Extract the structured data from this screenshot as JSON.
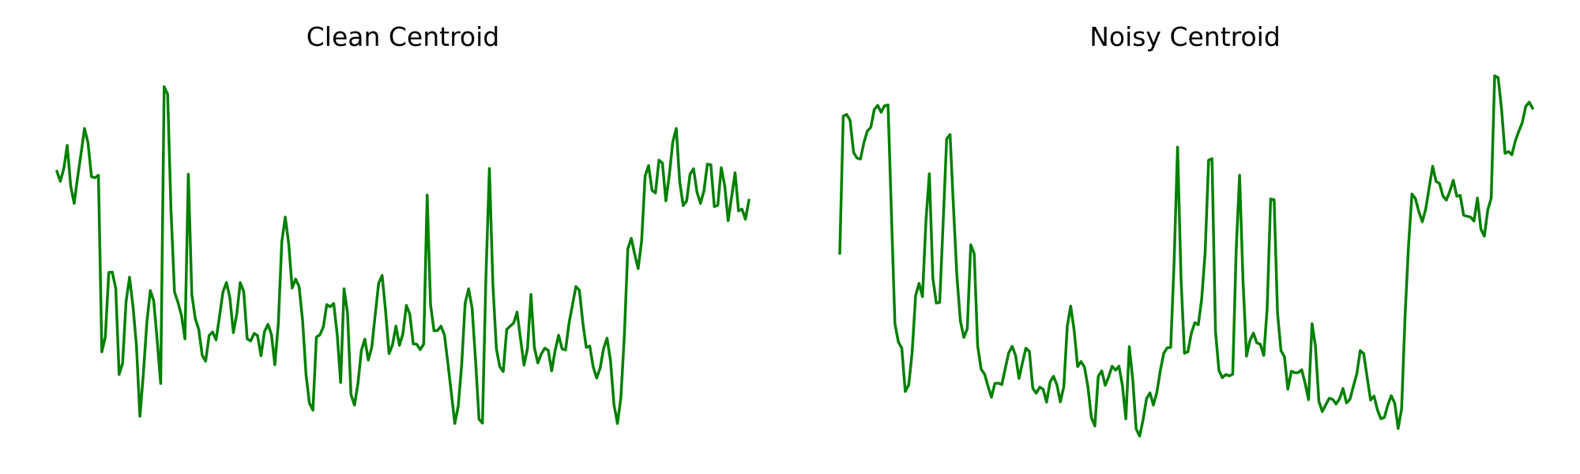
{
  "line_color": "#008000",
  "chart_data": [
    {
      "type": "line",
      "title": "Clean Centroid",
      "axes_visible": false,
      "grid": false,
      "ylim": [
        0,
        100
      ],
      "series": [
        {
          "values": [
            73.5,
            70.7,
            74.3,
            80.7,
            69.4,
            64.6,
            71.9,
            78.6,
            85.4,
            81.4,
            72.0,
            71.7,
            72.4,
            23.4,
            27.5,
            45.4,
            45.5,
            41.0,
            17.1,
            20.2,
            37.4,
            44.1,
            35.9,
            25.1,
            5.5,
            17.4,
            31.6,
            40.4,
            37.5,
            26.5,
            14.6,
            97.0,
            94.9,
            62.4,
            40.0,
            37.1,
            33.5,
            27.0,
            72.7,
            39.3,
            32.6,
            29.6,
            22.4,
            20.8,
            27.9,
            28.9,
            26.7,
            33.3,
            40.0,
            42.6,
            38.4,
            28.7,
            34.0,
            42.6,
            40.1,
            27.0,
            26.4,
            28.5,
            27.9,
            22.3,
            29.0,
            31.0,
            28.2,
            19.8,
            31.2,
            53.9,
            60.8,
            53.3,
            41.1,
            43.6,
            41.5,
            32.1,
            17.0,
            9.1,
            7.2,
            27.5,
            28.1,
            30.3,
            36.5,
            35.9,
            36.8,
            28.3,
            14.9,
            40.9,
            34.2,
            11.5,
            8.6,
            14.6,
            23.7,
            26.9,
            21.1,
            24.7,
            33.8,
            42.4,
            44.6,
            34.7,
            22.9,
            25.4,
            30.5,
            25.2,
            28.4,
            36.3,
            33.8,
            25.6,
            25.5,
            24.0,
            25.5,
            66.9,
            36.5,
            29.2,
            29.3,
            30.5,
            28.1,
            20.3,
            12.0,
            3.5,
            8.4,
            20.1,
            36.9,
            40.9,
            35.5,
            20.9,
            4.7,
            3.6,
            44.2,
            74.3,
            42.2,
            24.3,
            19.3,
            17.9,
            29.6,
            30.5,
            31.4,
            34.4,
            27.0,
            19.7,
            24.3,
            39.3,
            24.6,
            20.3,
            22.8,
            24.4,
            23.8,
            18.1,
            23.8,
            28.0,
            24.2,
            23.9,
            31.2,
            36.4,
            41.5,
            40.5,
            31.4,
            24.6,
            25.0,
            19.2,
            16.1,
            18.9,
            24.3,
            27.2,
            20.9,
            8.7,
            3.5,
            10.6,
            27.8,
            52.0,
            54.9,
            50.4,
            46.5,
            54.2,
            72.2,
            75.1,
            68.2,
            67.5,
            76.6,
            75.8,
            65.3,
            72.6,
            81.6,
            85.4,
            70.6,
            64.0,
            65.3,
            72.7,
            74.2,
            67.7,
            64.6,
            68.1,
            75.5,
            75.3,
            63.7,
            64.1,
            74.5,
            69.6,
            59.8,
            66.4,
            73.1,
            62.5,
            63.0,
            60.2,
            65.5
          ]
        }
      ]
    },
    {
      "type": "line",
      "title": "Noisy Centroid",
      "axes_visible": false,
      "grid": false,
      "ylim": [
        0,
        100
      ],
      "series": [
        {
          "values": [
            50.7,
            88.8,
            89.3,
            87.6,
            78.7,
            77.2,
            76.9,
            81.4,
            84.7,
            85.7,
            90.6,
            91.8,
            89.9,
            91.7,
            91.9,
            61.6,
            31.2,
            26.1,
            24.4,
            12.4,
            14.2,
            23.2,
            39.0,
            42.4,
            38.7,
            59.8,
            72.8,
            43.9,
            36.9,
            37.1,
            59.5,
            82.5,
            83.7,
            63.2,
            44.3,
            31.9,
            27.4,
            29.8,
            53.1,
            50.6,
            25.1,
            18.6,
            17.2,
            13.9,
            10.8,
            14.6,
            14.7,
            14.3,
            18.7,
            23.1,
            24.9,
            22.4,
            16.0,
            20.3,
            24.4,
            23.5,
            13.3,
            11.9,
            13.6,
            13.0,
            9.4,
            15.0,
            16.6,
            14.2,
            9.5,
            13.7,
            30.5,
            36.1,
            29.3,
            19.3,
            20.7,
            19.1,
            13.7,
            5.1,
            2.8,
            16.6,
            18.1,
            14.1,
            16.4,
            19.4,
            18.3,
            19.4,
            14.0,
            4.8,
            24.8,
            15.6,
            2.0,
            0.0,
            4.6,
            10.4,
            12.0,
            8.6,
            12.2,
            18.2,
            23.0,
            24.5,
            24.6,
            48.2,
            80.2,
            43.5,
            23.0,
            23.4,
            28.5,
            31.5,
            30.9,
            38.0,
            51.0,
            76.6,
            77.0,
            29.0,
            18.2,
            16.2,
            17.1,
            16.7,
            17.2,
            51.8,
            72.4,
            42.7,
            22.2,
            26.5,
            28.6,
            25.9,
            25.5,
            22.4,
            35.4,
            65.8,
            65.6,
            34.2,
            23.7,
            22.0,
            13.0,
            18.0,
            17.6,
            17.6,
            18.4,
            14.7,
            10.1,
            31.2,
            25.0,
            9.6,
            6.8,
            8.7,
            10.5,
            10.2,
            8.9,
            10.4,
            13.2,
            9.2,
            10.2,
            13.8,
            17.3,
            23.7,
            22.9,
            16.3,
            10.0,
            11.1,
            7.2,
            4.8,
            5.2,
            8.6,
            11.2,
            9.1,
            2.1,
            7.6,
            33.5,
            52.7,
            67.2,
            65.9,
            62.3,
            59.5,
            63.0,
            69.0,
            74.9,
            70.7,
            70.1,
            66.6,
            65.5,
            68.0,
            71.0,
            66.6,
            66.8,
            61.3,
            61.0,
            60.8,
            59.7,
            66.1,
            57.4,
            55.5,
            62.8,
            66.0,
            100.0,
            99.5,
            90.8,
            78.5,
            79.0,
            78.1,
            82.0,
            84.6,
            87.0,
            91.5,
            92.7,
            91.0
          ]
        }
      ]
    }
  ]
}
